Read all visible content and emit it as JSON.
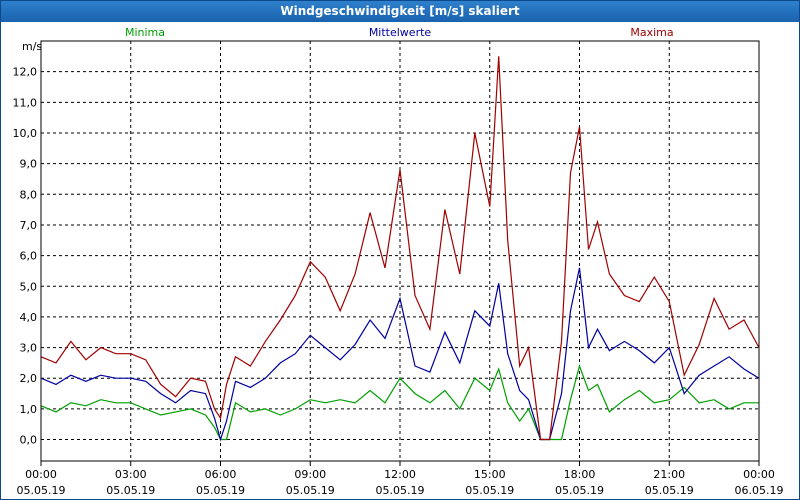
{
  "window": {
    "title": "Windgeschwindigkeit [m/s] skaliert"
  },
  "colors": {
    "minima": "#00a000",
    "mittel": "#0000a0",
    "maxima": "#a00000",
    "grid": "#000000"
  },
  "chart_data": {
    "type": "line",
    "title": "Windgeschwindigkeit [m/s] skaliert",
    "ylabel": "m/s",
    "ylim": [
      -0.7,
      13.0
    ],
    "xlim_hours": [
      0,
      24
    ],
    "y_ticks": [
      "0,0",
      "1,0",
      "2,0",
      "3,0",
      "4,0",
      "5,0",
      "6,0",
      "7,0",
      "8,0",
      "9,0",
      "10,0",
      "11,0",
      "12,0"
    ],
    "x_ticks": [
      {
        "time": "00:00",
        "date": "05.05.19"
      },
      {
        "time": "03:00",
        "date": "05.05.19"
      },
      {
        "time": "06:00",
        "date": "05.05.19"
      },
      {
        "time": "09:00",
        "date": "05.05.19"
      },
      {
        "time": "12:00",
        "date": "05.05.19"
      },
      {
        "time": "15:00",
        "date": "05.05.19"
      },
      {
        "time": "18:00",
        "date": "05.05.19"
      },
      {
        "time": "21:00",
        "date": "05.05.19"
      },
      {
        "time": "00:00",
        "date": "06.05.19"
      }
    ],
    "legend": [
      "Minima",
      "Mittelwerte",
      "Maxima"
    ],
    "series": [
      {
        "name": "Minima",
        "x": [
          0,
          0.5,
          1,
          1.5,
          2,
          2.5,
          3,
          3.5,
          4,
          4.5,
          5,
          5.5,
          5.8,
          6,
          6.2,
          6.5,
          7,
          7.5,
          8,
          8.5,
          9,
          9.5,
          10,
          10.5,
          11,
          11.5,
          12,
          12.5,
          13,
          13.5,
          14,
          14.5,
          15,
          15.3,
          15.6,
          16,
          16.3,
          16.7,
          17,
          17.4,
          17.7,
          18,
          18.3,
          18.6,
          19,
          19.5,
          20,
          20.5,
          21,
          21.5,
          22,
          22.5,
          23,
          23.5,
          24
        ],
        "values": [
          1.1,
          0.9,
          1.2,
          1.1,
          1.3,
          1.2,
          1.2,
          1.0,
          0.8,
          0.9,
          1.0,
          0.8,
          0.4,
          0.0,
          0.0,
          1.2,
          0.9,
          1.0,
          0.8,
          1.0,
          1.3,
          1.2,
          1.3,
          1.2,
          1.6,
          1.2,
          2.0,
          1.5,
          1.2,
          1.6,
          1.0,
          2.0,
          1.6,
          2.3,
          1.2,
          0.6,
          1.0,
          0.0,
          0.0,
          0.0,
          1.3,
          2.4,
          1.6,
          1.8,
          0.9,
          1.3,
          1.6,
          1.2,
          1.3,
          1.7,
          1.2,
          1.3,
          1.0,
          1.2,
          1.2
        ]
      },
      {
        "name": "Mittelwerte",
        "x": [
          0,
          0.5,
          1,
          1.5,
          2,
          2.5,
          3,
          3.5,
          4,
          4.5,
          5,
          5.5,
          5.8,
          6,
          6.2,
          6.5,
          7,
          7.5,
          8,
          8.5,
          9,
          9.5,
          10,
          10.5,
          11,
          11.5,
          12,
          12.5,
          13,
          13.5,
          14,
          14.5,
          15,
          15.3,
          15.6,
          16,
          16.3,
          16.7,
          17,
          17.4,
          17.7,
          18,
          18.3,
          18.6,
          19,
          19.5,
          20,
          20.5,
          21,
          21.5,
          22,
          22.5,
          23,
          23.5,
          24
        ],
        "values": [
          2.0,
          1.8,
          2.1,
          1.9,
          2.1,
          2.0,
          2.0,
          1.9,
          1.5,
          1.2,
          1.6,
          1.5,
          0.7,
          0.0,
          0.6,
          1.9,
          1.7,
          2.0,
          2.5,
          2.8,
          3.4,
          3.0,
          2.6,
          3.1,
          3.9,
          3.3,
          4.6,
          2.4,
          2.2,
          3.5,
          2.5,
          4.2,
          3.7,
          5.1,
          2.8,
          1.6,
          1.3,
          0.0,
          0.0,
          1.5,
          4.2,
          5.6,
          3.0,
          3.6,
          2.9,
          3.2,
          2.9,
          2.5,
          3.0,
          1.5,
          2.1,
          2.4,
          2.7,
          2.3,
          2.0
        ]
      },
      {
        "name": "Maxima",
        "x": [
          0,
          0.5,
          1,
          1.5,
          2,
          2.5,
          3,
          3.5,
          4,
          4.5,
          5,
          5.5,
          5.8,
          6,
          6.2,
          6.5,
          7,
          7.5,
          8,
          8.5,
          9,
          9.5,
          10,
          10.5,
          11,
          11.5,
          12,
          12.5,
          13,
          13.5,
          14,
          14.5,
          15,
          15.3,
          15.6,
          16,
          16.3,
          16.7,
          17,
          17.4,
          17.7,
          18,
          18.3,
          18.6,
          19,
          19.5,
          20,
          20.5,
          21,
          21.5,
          22,
          22.5,
          23,
          23.5,
          24
        ],
        "values": [
          2.7,
          2.5,
          3.2,
          2.6,
          3.0,
          2.8,
          2.8,
          2.6,
          1.8,
          1.4,
          2.0,
          1.9,
          1.0,
          0.7,
          1.8,
          2.7,
          2.4,
          3.2,
          3.9,
          4.7,
          5.8,
          5.3,
          4.2,
          5.4,
          7.4,
          5.6,
          8.8,
          4.7,
          3.6,
          7.5,
          5.4,
          10.0,
          7.6,
          12.5,
          6.5,
          2.4,
          3.0,
          0.0,
          0.0,
          3.2,
          8.7,
          10.2,
          6.2,
          7.1,
          5.4,
          4.7,
          4.5,
          5.3,
          4.5,
          2.1,
          3.1,
          4.6,
          3.6,
          3.9,
          3.0
        ]
      }
    ]
  }
}
